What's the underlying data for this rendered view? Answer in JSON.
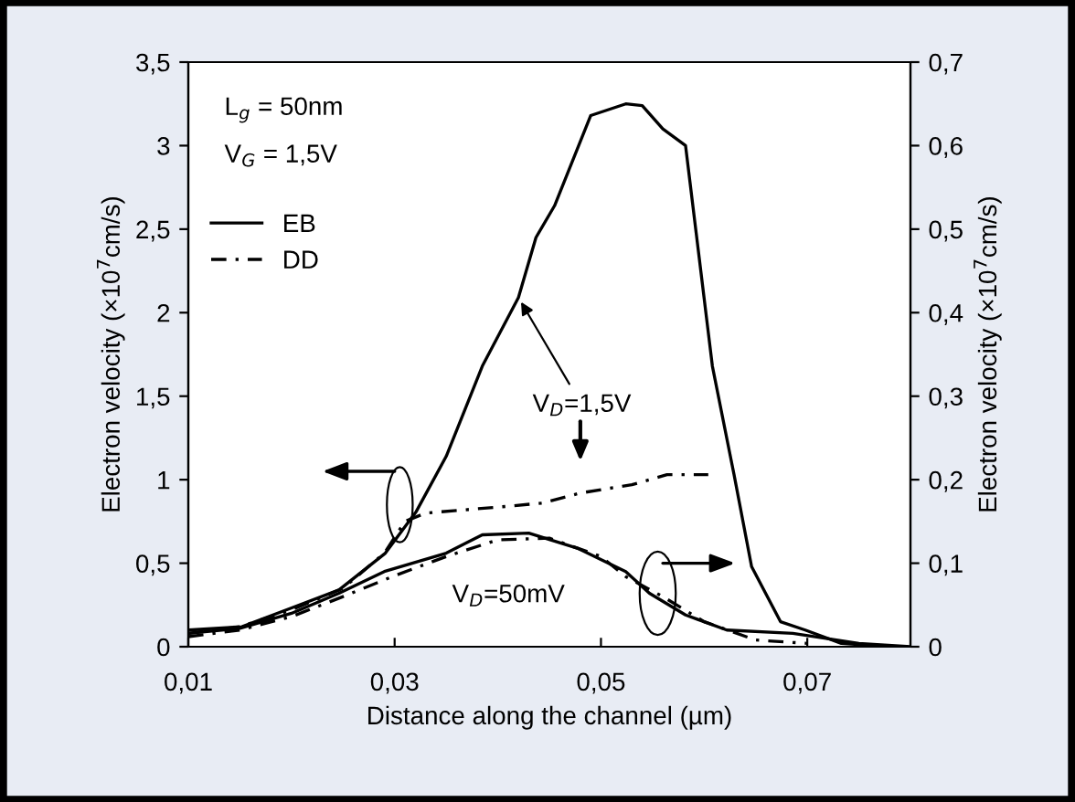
{
  "chart_data": {
    "type": "line",
    "xlabel": "Distance along the channel (µm)",
    "ylabel": "Electron velocity (×10$^{7}$cm/s)",
    "y2label": "Electron velocity (×10$^{7}$cm/s)",
    "xlim": [
      0.01,
      0.08
    ],
    "xticks": [
      {
        "value": 0.01,
        "label": "0,01"
      },
      {
        "value": 0.03,
        "label": "0,03"
      },
      {
        "value": 0.05,
        "label": "0,05"
      },
      {
        "value": 0.07,
        "label": "0,07"
      }
    ],
    "ylim": [
      0,
      3.5
    ],
    "yticks": [
      0,
      {
        "value": 0.5,
        "label": "0,5"
      },
      1,
      {
        "value": 1.5,
        "label": "1,5"
      },
      2,
      {
        "value": 2.5,
        "label": "2,5"
      },
      3,
      {
        "value": 3.5,
        "label": "3,5"
      }
    ],
    "y2lim": [
      0,
      0.7
    ],
    "y2ticks": [
      0,
      {
        "value": 0.1,
        "label": "0,1"
      },
      {
        "value": 0.2,
        "label": "0,2"
      },
      {
        "value": 0.3,
        "label": "0,3"
      },
      {
        "value": 0.4,
        "label": "0,4"
      },
      {
        "value": 0.5,
        "label": "0,5"
      },
      {
        "value": 0.6,
        "label": "0,6"
      },
      {
        "value": 0.7,
        "label": "0,7"
      }
    ],
    "legend": "top left",
    "grid": false,
    "series": [
      {
        "name": "EB",
        "color": "#000000",
        "line_style": "solid",
        "x": [
          0.01,
          0.0152,
          0.0199,
          0.0246,
          0.0291,
          0.0321,
          0.035,
          0.0385,
          0.042,
          0.0437,
          0.0455,
          0.049,
          0.0524,
          0.054,
          0.056,
          0.0582,
          0.0608,
          0.0629,
          0.0646,
          0.0674,
          0.0698,
          0.0733,
          0.078
        ],
        "values": [
          0.1,
          0.12,
          0.23,
          0.34,
          0.56,
          0.81,
          1.14,
          1.68,
          2.09,
          2.45,
          2.64,
          3.18,
          3.25,
          3.24,
          3.1,
          3.0,
          1.68,
          1.03,
          0.48,
          0.15,
          0.1,
          0.02,
          0.0
        ]
      },
      {
        "name": "DD",
        "color": "#000000",
        "line_style": "dashed",
        "x": [
          0.01,
          0.015,
          0.02,
          0.025,
          0.029,
          0.031,
          0.033,
          0.0408,
          0.0443,
          0.048,
          0.053,
          0.0564,
          0.0604
        ],
        "values": [
          0.08,
          0.12,
          0.22,
          0.35,
          0.56,
          0.75,
          0.8,
          0.84,
          0.86,
          0.92,
          0.97,
          1.03,
          1.03
        ]
      },
      {
        "color": "#000000",
        "line_style": "solid",
        "axis": "y2",
        "x": [
          0.01,
          0.015,
          0.02,
          0.0246,
          0.029,
          0.035,
          0.0385,
          0.043,
          0.0477,
          0.0524,
          0.0547,
          0.0582,
          0.0622,
          0.0686,
          0.075,
          0.08
        ],
        "values": [
          0.016,
          0.022,
          0.04,
          0.064,
          0.09,
          0.112,
          0.134,
          0.136,
          0.118,
          0.09,
          0.064,
          0.038,
          0.02,
          0.016,
          0.004,
          0.0
        ]
      },
      {
        "color": "#000000",
        "line_style": "dashed",
        "axis": "y2",
        "x": [
          0.01,
          0.015,
          0.02,
          0.025,
          0.03,
          0.035,
          0.04,
          0.045,
          0.05,
          0.0524,
          0.056,
          0.06,
          0.065,
          0.07
        ],
        "values": [
          0.012,
          0.02,
          0.036,
          0.06,
          0.085,
          0.108,
          0.128,
          0.13,
          0.108,
          0.084,
          0.06,
          0.03,
          0.008,
          0.004
        ]
      }
    ],
    "annotations": [
      "L$_{g}$ = 50nm",
      "V$_{G}$ = 1,5V",
      {
        "text": "V$_{D}$=1,5V",
        "x": 0.042,
        "y": 2.09
      },
      {
        "text": "V$_{D}$=50mV",
        "x": 0.043,
        "y": 0.68
      }
    ]
  }
}
